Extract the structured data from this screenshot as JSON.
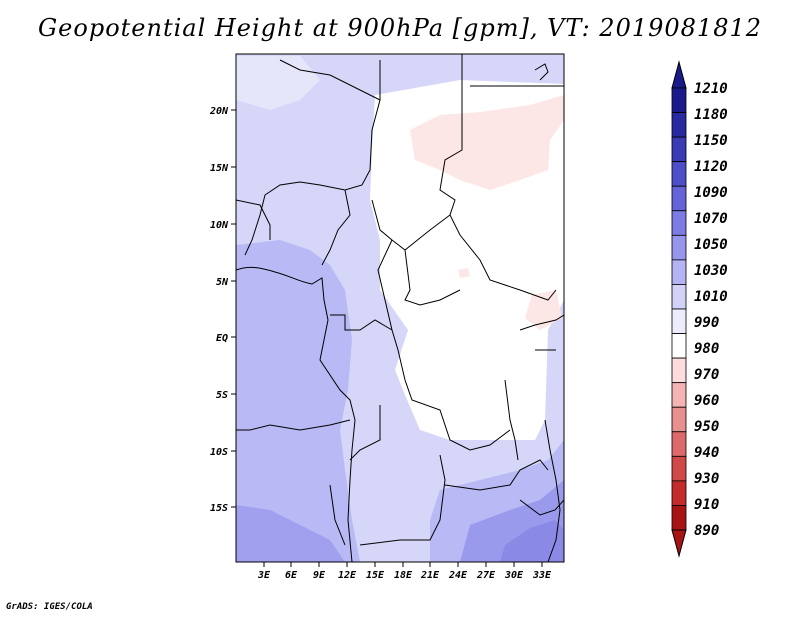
{
  "title": "Geopotential Height at 900hPa [gpm], VT: 2019081812",
  "footer": "GrADS: IGES/COLA",
  "map": {
    "lat_labels": [
      "20N",
      "15N",
      "10N",
      "5N",
      "EQ",
      "5S",
      "10S",
      "15S"
    ],
    "lon_labels": [
      "3E",
      "6E",
      "9E",
      "12E",
      "15E",
      "18E",
      "21E",
      "24E",
      "27E",
      "30E",
      "33E"
    ]
  },
  "colorbar": {
    "labels": [
      "1210",
      "1180",
      "1150",
      "1120",
      "1090",
      "1070",
      "1050",
      "1030",
      "1010",
      "990",
      "980",
      "970",
      "960",
      "950",
      "940",
      "930",
      "910",
      "890"
    ],
    "colors": [
      "#1a1a8c",
      "#2828a0",
      "#3a3ab4",
      "#4e4ec8",
      "#6464d8",
      "#7c7ce4",
      "#9696ec",
      "#b4b4f4",
      "#d2d2f8",
      "#ececfc",
      "#ffffff",
      "#fcdcdc",
      "#f4b4b4",
      "#e89090",
      "#dc6a6a",
      "#d04848",
      "#c42c2c",
      "#a81414"
    ]
  }
}
